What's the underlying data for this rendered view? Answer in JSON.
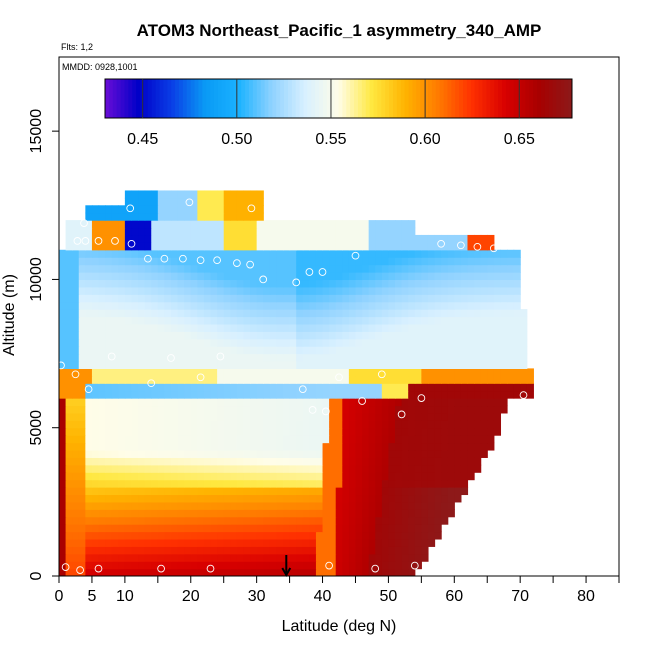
{
  "chart_data": {
    "type": "heatmap",
    "title": "ATOM3 Northeast_Pacific_1 asymmetry_340_AMP",
    "flights_label": "Flts: 1,2",
    "dates_label": "MMDD: 0928,1001",
    "xlabel": "Latitude (deg N)",
    "ylabel": "Altitude (m)",
    "xlim": [
      0,
      85
    ],
    "ylim": [
      0,
      17500
    ],
    "x_ticks": [
      0,
      5,
      10,
      20,
      30,
      40,
      50,
      60,
      70,
      80
    ],
    "x_tick_labels": [
      "0",
      "5",
      "10",
      "20",
      "30",
      "40",
      "50",
      "60",
      "70",
      "80"
    ],
    "x_minor_ticks": [
      15,
      25,
      35,
      45,
      55,
      65,
      75,
      85
    ],
    "y_ticks": [
      0,
      5000,
      10000,
      15000
    ],
    "y_tick_labels": [
      "0",
      "5000",
      "10000",
      "15000"
    ],
    "colorbar": {
      "range": [
        0.43,
        0.678
      ],
      "ticks": [
        0.45,
        0.5,
        0.55,
        0.6,
        0.65
      ],
      "tick_labels": [
        "0.45",
        "0.50",
        "0.55",
        "0.60",
        "0.65"
      ],
      "colors": [
        "#6a0dd6",
        "#0000c8",
        "#0a3ee6",
        "#0a9af5",
        "#1ab2ff",
        "#8fd2ff",
        "#d8f0ff",
        "#fffde8",
        "#ffe840",
        "#ffb300",
        "#ff7a00",
        "#ff3000",
        "#d80000",
        "#a80000",
        "#8c1a1a"
      ]
    },
    "arrow_latitude": 34.5,
    "observation_points": [
      {
        "x": 0.3,
        "y": 7100
      },
      {
        "x": 1.0,
        "y": 300
      },
      {
        "x": 2.5,
        "y": 6800
      },
      {
        "x": 4.5,
        "y": 6300
      },
      {
        "x": 2.8,
        "y": 11300
      },
      {
        "x": 3.8,
        "y": 11900
      },
      {
        "x": 4.0,
        "y": 11300
      },
      {
        "x": 6.0,
        "y": 11300
      },
      {
        "x": 8.5,
        "y": 11300
      },
      {
        "x": 11.0,
        "y": 11200
      },
      {
        "x": 10.8,
        "y": 12400
      },
      {
        "x": 13.5,
        "y": 10700
      },
      {
        "x": 16.0,
        "y": 10700
      },
      {
        "x": 18.8,
        "y": 10700
      },
      {
        "x": 19.8,
        "y": 12600
      },
      {
        "x": 21.5,
        "y": 10650
      },
      {
        "x": 24.0,
        "y": 10650
      },
      {
        "x": 27.0,
        "y": 10550
      },
      {
        "x": 29.0,
        "y": 10500
      },
      {
        "x": 29.2,
        "y": 12400
      },
      {
        "x": 31.0,
        "y": 10000
      },
      {
        "x": 36.0,
        "y": 9900
      },
      {
        "x": 38.0,
        "y": 10250
      },
      {
        "x": 40.0,
        "y": 10250
      },
      {
        "x": 45.0,
        "y": 10800
      },
      {
        "x": 58.0,
        "y": 11200
      },
      {
        "x": 61.0,
        "y": 11150
      },
      {
        "x": 63.5,
        "y": 11100
      },
      {
        "x": 66.0,
        "y": 11050
      },
      {
        "x": 8.0,
        "y": 7400
      },
      {
        "x": 17.0,
        "y": 7350
      },
      {
        "x": 24.5,
        "y": 7400
      },
      {
        "x": 14.0,
        "y": 6500
      },
      {
        "x": 21.5,
        "y": 6700
      },
      {
        "x": 37.0,
        "y": 6300
      },
      {
        "x": 42.5,
        "y": 6700
      },
      {
        "x": 49.0,
        "y": 6800
      },
      {
        "x": 46.0,
        "y": 5900
      },
      {
        "x": 38.5,
        "y": 5600
      },
      {
        "x": 40.5,
        "y": 5550
      },
      {
        "x": 52.0,
        "y": 5450
      },
      {
        "x": 55.0,
        "y": 6000
      },
      {
        "x": 70.5,
        "y": 6100
      },
      {
        "x": 6.0,
        "y": 250
      },
      {
        "x": 15.5,
        "y": 250
      },
      {
        "x": 23.0,
        "y": 250
      },
      {
        "x": 41.0,
        "y": 350
      },
      {
        "x": 48.0,
        "y": 250
      },
      {
        "x": 54.0,
        "y": 350
      },
      {
        "x": 3.2,
        "y": 200
      }
    ]
  }
}
